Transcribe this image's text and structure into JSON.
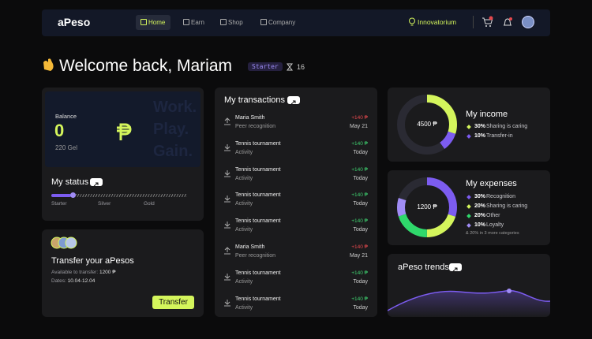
{
  "nav": {
    "logo": "aPeso",
    "items": [
      "Home",
      "Earn",
      "Shop",
      "Company"
    ],
    "active": 0,
    "org": "Innovatorium"
  },
  "welcome": {
    "title": "Welcome back, Mariam",
    "badge": "Starter",
    "count": "16"
  },
  "balance": {
    "label": "Balance",
    "value": "0",
    "sub": "220 Gel",
    "motto": [
      "Work.",
      "Play.",
      "Gain."
    ]
  },
  "status": {
    "title": "My status",
    "levels": [
      "Starter",
      "Silver",
      "Gold"
    ]
  },
  "transfer": {
    "title": "Transfer your aPesos",
    "available_label": "Available to transfer:",
    "available": "1200 ₱",
    "dates_label": "Dates:",
    "dates": "10.04-12.04",
    "button": "Transfer"
  },
  "transactions": {
    "title": "My transactions",
    "items": [
      {
        "title": "Maria Smith",
        "subtitle": "Peer recognition",
        "amount": "+140 ₱",
        "date": "May 21",
        "color": "#e5484d"
      },
      {
        "title": "Tennis tournament",
        "subtitle": "Activity",
        "amount": "+140 ₱",
        "date": "Today",
        "color": "#3ecf6e"
      },
      {
        "title": "Tennis tournament",
        "subtitle": "Activity",
        "amount": "+140 ₱",
        "date": "Today",
        "color": "#3ecf6e"
      },
      {
        "title": "Tennis tournament",
        "subtitle": "Activity",
        "amount": "+140 ₱",
        "date": "Today",
        "color": "#3ecf6e"
      },
      {
        "title": "Tennis tournament",
        "subtitle": "Activity",
        "amount": "+140 ₱",
        "date": "Today",
        "color": "#3ecf6e"
      },
      {
        "title": "Maria Smith",
        "subtitle": "Peer recognition",
        "amount": "+140 ₱",
        "date": "May 21",
        "color": "#e5484d"
      },
      {
        "title": "Tennis tournament",
        "subtitle": "Activity",
        "amount": "+140 ₱",
        "date": "Today",
        "color": "#3ecf6e"
      },
      {
        "title": "Tennis tournament",
        "subtitle": "Activity",
        "amount": "+140 ₱",
        "date": "Today",
        "color": "#3ecf6e"
      }
    ]
  },
  "income": {
    "title": "My income",
    "center": "4500 ₱",
    "segments": [
      {
        "value": {
          "value": 30,
          "label": "30%"
        },
        "label": "Sharing is caring",
        "color": "#d4f55c"
      },
      {
        "value": {
          "value": 10,
          "label": "10%"
        },
        "label": "Transfer-in",
        "color": "#7c5cf0"
      }
    ]
  },
  "expenses": {
    "title": "My expenses",
    "center": "1200 ₱",
    "note": "& 20% in 3 more categories",
    "segments": [
      {
        "value": {
          "value": 30,
          "label": "30%"
        },
        "label": "Recognition",
        "color": "#7c5cf0"
      },
      {
        "value": {
          "value": 20,
          "label": "20%"
        },
        "label": "Sharing is caring",
        "color": "#d4f55c"
      },
      {
        "value": {
          "value": 20,
          "label": "20%"
        },
        "label": "Other",
        "color": "#2fd86b"
      },
      {
        "value": {
          "value": 10,
          "label": "10%"
        },
        "label": "Loyalty",
        "color": "#a08cf5"
      }
    ]
  },
  "trends": {
    "title": "aPeso trends"
  }
}
